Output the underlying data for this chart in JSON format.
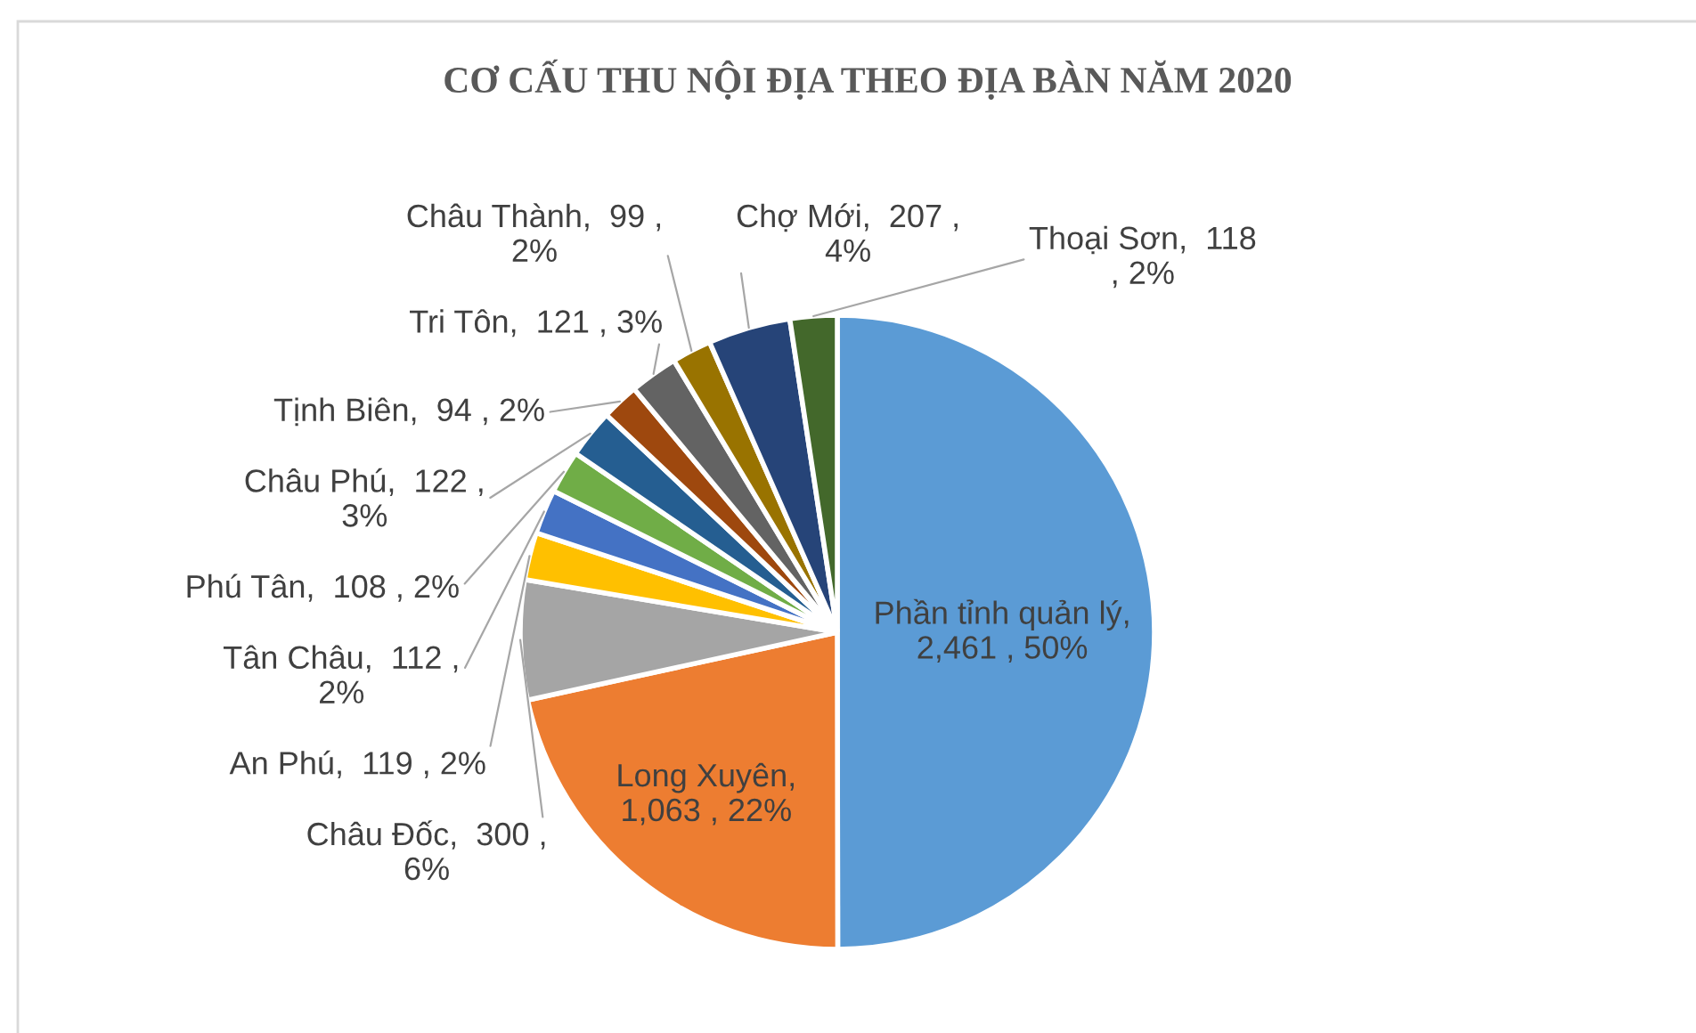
{
  "chart_data": {
    "type": "pie",
    "title": "CƠ CẤU THU NỘI ĐỊA THEO ĐỊA BÀN NĂM 2020",
    "categories": [
      "Phần tỉnh quản lý",
      "Long Xuyên",
      "Châu Đốc",
      "An Phú",
      "Tân Châu",
      "Phú Tân",
      "Châu Phú",
      "Tịnh Biên",
      "Tri Tôn",
      "Châu Thành",
      "Chợ Mới",
      "Thoại Sơn"
    ],
    "values": [
      2461,
      1063,
      300,
      119,
      112,
      108,
      122,
      94,
      121,
      99,
      207,
      118
    ],
    "colors": [
      "#5b9bd5",
      "#ed7d31",
      "#a5a5a5",
      "#ffc000",
      "#4472c4",
      "#70ad47",
      "#255e91",
      "#9e480e",
      "#636363",
      "#997300",
      "#264478",
      "#43682b"
    ],
    "value_labels": [
      ",\n2,461 , 50%",
      ",\n1,063 , 22%",
      ",  300 ,\n6%",
      ",  119 , 2%",
      ",  112 ,\n2%",
      ",  108 , 2%",
      ",  122 ,\n3%",
      ",  94 , 2%",
      ",  121 , 3%",
      ",  99 ,\n2%",
      ",  207 ,\n4%",
      ",  118\n, 2%"
    ]
  }
}
